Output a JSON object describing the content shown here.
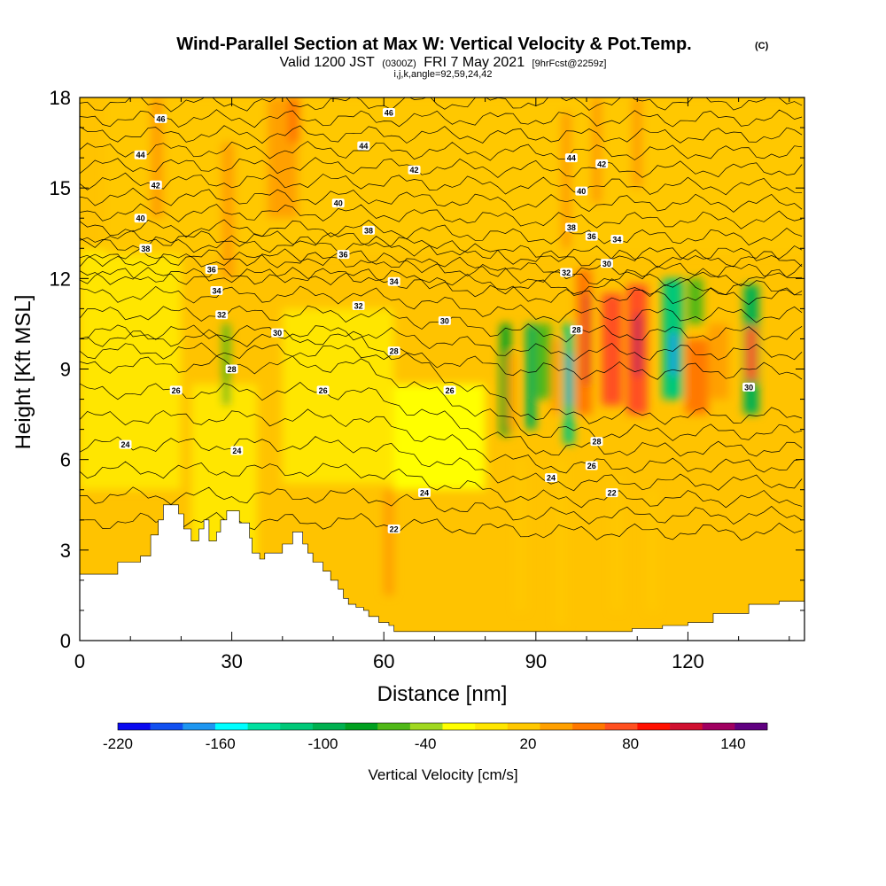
{
  "chart_data": {
    "type": "heatmap",
    "title": "Wind-Parallel Section at Max W: Vertical Velocity & Pot.Temp.",
    "title_mark": "(C)",
    "subtitle_valid": "Valid 1200 JST",
    "subtitle_utc": "(0300Z)",
    "subtitle_date": "FRI 7 May 2021",
    "subtitle_fcst": "[9hrFcst@2259z]",
    "subtitle_indices": "i,j,k,angle=92,59,24,42",
    "xlabel": "Distance [nm]",
    "ylabel": "Height [Kft MSL]",
    "xlim": [
      0,
      143
    ],
    "ylim": [
      0,
      18
    ],
    "x_ticks": [
      0,
      30,
      60,
      90,
      120
    ],
    "y_ticks": [
      0,
      3,
      6,
      9,
      12,
      15,
      18
    ],
    "colorbar": {
      "label": "Vertical Velocity [cm/s]",
      "min": -220,
      "max": 160,
      "step": 20,
      "tick_labels": [
        "-220",
        "-160",
        "-100",
        "-40",
        "20",
        "80",
        "140"
      ],
      "colors": [
        "#0a0af0",
        "#1150f0",
        "#1e96f0",
        "#00ffff",
        "#00e0a0",
        "#00c878",
        "#00b050",
        "#00a020",
        "#50b818",
        "#a0d820",
        "#ffff00",
        "#ffe600",
        "#ffc800",
        "#ffa000",
        "#ff7800",
        "#ff5020",
        "#ff1000",
        "#d01030",
        "#a00060",
        "#600080"
      ]
    },
    "isentrope_labels": [
      {
        "value": "46",
        "x": 16,
        "y": 17.3
      },
      {
        "value": "46",
        "x": 61,
        "y": 17.5
      },
      {
        "value": "44",
        "x": 12,
        "y": 16.1
      },
      {
        "value": "44",
        "x": 56,
        "y": 16.4
      },
      {
        "value": "44",
        "x": 97,
        "y": 16.0
      },
      {
        "value": "42",
        "x": 15,
        "y": 15.1
      },
      {
        "value": "42",
        "x": 66,
        "y": 15.6
      },
      {
        "value": "42",
        "x": 103,
        "y": 15.8
      },
      {
        "value": "40",
        "x": 12,
        "y": 14.0
      },
      {
        "value": "40",
        "x": 51,
        "y": 14.5
      },
      {
        "value": "40",
        "x": 99,
        "y": 14.9
      },
      {
        "value": "38",
        "x": 13,
        "y": 13.0
      },
      {
        "value": "38",
        "x": 57,
        "y": 13.6
      },
      {
        "value": "38",
        "x": 97,
        "y": 13.7
      },
      {
        "value": "36",
        "x": 26,
        "y": 12.3
      },
      {
        "value": "36",
        "x": 52,
        "y": 12.8
      },
      {
        "value": "36",
        "x": 101,
        "y": 13.4
      },
      {
        "value": "34",
        "x": 27,
        "y": 11.6
      },
      {
        "value": "34",
        "x": 62,
        "y": 11.9
      },
      {
        "value": "34",
        "x": 106,
        "y": 13.3
      },
      {
        "value": "32",
        "x": 28,
        "y": 10.8
      },
      {
        "value": "32",
        "x": 55,
        "y": 11.1
      },
      {
        "value": "32",
        "x": 96,
        "y": 12.2
      },
      {
        "value": "30",
        "x": 39,
        "y": 10.2
      },
      {
        "value": "30",
        "x": 72,
        "y": 10.6
      },
      {
        "value": "30",
        "x": 104,
        "y": 12.5
      },
      {
        "value": "30",
        "x": 132,
        "y": 8.4
      },
      {
        "value": "28",
        "x": 30,
        "y": 9.0
      },
      {
        "value": "28",
        "x": 62,
        "y": 9.6
      },
      {
        "value": "28",
        "x": 98,
        "y": 10.3
      },
      {
        "value": "28",
        "x": 102,
        "y": 6.6
      },
      {
        "value": "26",
        "x": 19,
        "y": 8.3
      },
      {
        "value": "26",
        "x": 48,
        "y": 8.3
      },
      {
        "value": "26",
        "x": 73,
        "y": 8.3
      },
      {
        "value": "26",
        "x": 101,
        "y": 5.8
      },
      {
        "value": "24",
        "x": 9,
        "y": 6.5
      },
      {
        "value": "24",
        "x": 31,
        "y": 6.3
      },
      {
        "value": "24",
        "x": 68,
        "y": 4.9
      },
      {
        "value": "24",
        "x": 93,
        "y": 5.4
      },
      {
        "value": "22",
        "x": 62,
        "y": 3.7
      },
      {
        "value": "22",
        "x": 105,
        "y": 4.9
      }
    ],
    "terrain_profile": [
      [
        0,
        2.2
      ],
      [
        7.5,
        2.2
      ],
      [
        7.5,
        2.6
      ],
      [
        12,
        2.6
      ],
      [
        12,
        2.8
      ],
      [
        14,
        2.8
      ],
      [
        14,
        3.5
      ],
      [
        15.5,
        3.5
      ],
      [
        15.5,
        4.0
      ],
      [
        16.5,
        4.0
      ],
      [
        16.5,
        4.5
      ],
      [
        19.5,
        4.5
      ],
      [
        19.5,
        4.2
      ],
      [
        20.5,
        4.2
      ],
      [
        20.5,
        3.7
      ],
      [
        22,
        3.7
      ],
      [
        22,
        3.3
      ],
      [
        23.5,
        3.3
      ],
      [
        23.5,
        3.7
      ],
      [
        24.5,
        3.7
      ],
      [
        24.5,
        4.0
      ],
      [
        25.5,
        4.0
      ],
      [
        25.5,
        3.3
      ],
      [
        27,
        3.3
      ],
      [
        27,
        3.6
      ],
      [
        27.8,
        3.6
      ],
      [
        27.8,
        4.0
      ],
      [
        29,
        4.0
      ],
      [
        29,
        4.3
      ],
      [
        31.5,
        4.3
      ],
      [
        31.5,
        3.9
      ],
      [
        33.5,
        3.9
      ],
      [
        33.5,
        3.4
      ],
      [
        34,
        3.4
      ],
      [
        34,
        2.9
      ],
      [
        35.5,
        2.9
      ],
      [
        35.5,
        2.7
      ],
      [
        36.5,
        2.7
      ],
      [
        36.5,
        2.9
      ],
      [
        40,
        2.9
      ],
      [
        40,
        3.2
      ],
      [
        42,
        3.2
      ],
      [
        42,
        3.6
      ],
      [
        44,
        3.6
      ],
      [
        44,
        3.2
      ],
      [
        45,
        3.2
      ],
      [
        45,
        2.9
      ],
      [
        46,
        2.9
      ],
      [
        46,
        2.6
      ],
      [
        48,
        2.6
      ],
      [
        48,
        2.3
      ],
      [
        49.5,
        2.3
      ],
      [
        49.5,
        2.0
      ],
      [
        51,
        2.0
      ],
      [
        51,
        1.7
      ],
      [
        52,
        1.7
      ],
      [
        52,
        1.4
      ],
      [
        53,
        1.4
      ],
      [
        53,
        1.2
      ],
      [
        54.5,
        1.2
      ],
      [
        54.5,
        1.1
      ],
      [
        56,
        1.1
      ],
      [
        56,
        1.0
      ],
      [
        57,
        1.0
      ],
      [
        57,
        0.8
      ],
      [
        59,
        0.8
      ],
      [
        59,
        0.6
      ],
      [
        61,
        0.6
      ],
      [
        61,
        0.5
      ],
      [
        62,
        0.5
      ],
      [
        62,
        0.3
      ],
      [
        109,
        0.3
      ],
      [
        109,
        0.4
      ],
      [
        115,
        0.4
      ],
      [
        115,
        0.5
      ],
      [
        120,
        0.5
      ],
      [
        120,
        0.6
      ],
      [
        125,
        0.6
      ],
      [
        125,
        0.9
      ],
      [
        132,
        0.9
      ],
      [
        132,
        1.2
      ],
      [
        138,
        1.2
      ],
      [
        138,
        1.3
      ],
      [
        143,
        1.3
      ]
    ]
  }
}
